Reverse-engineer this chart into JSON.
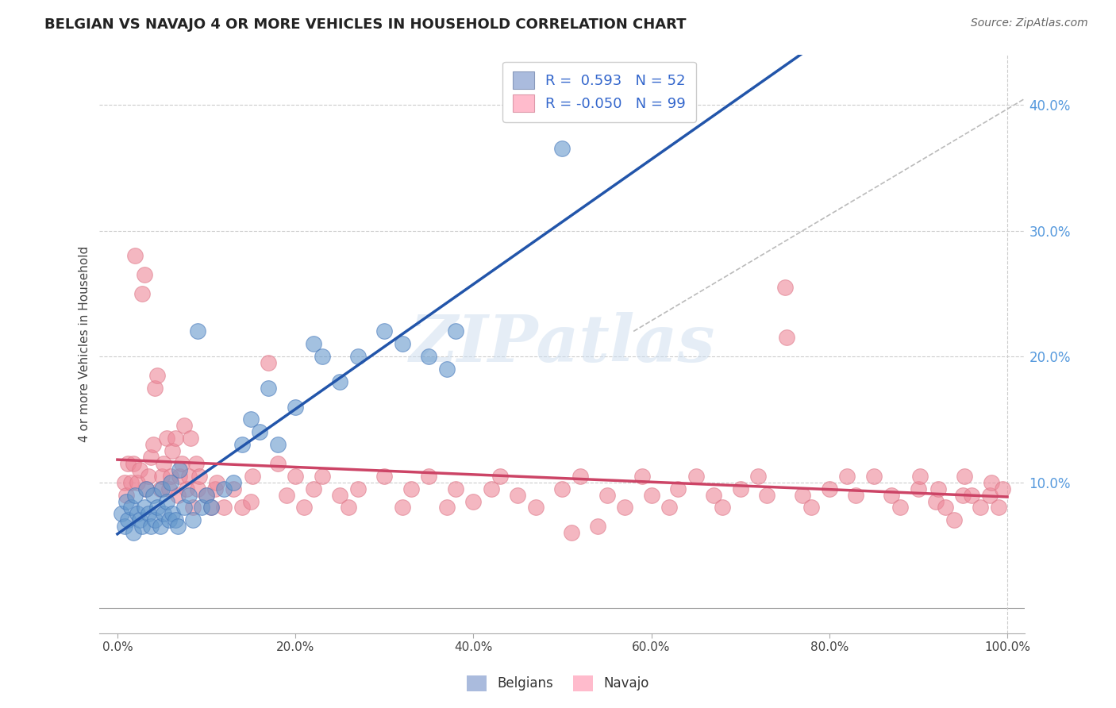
{
  "title": "BELGIAN VS NAVAJO 4 OR MORE VEHICLES IN HOUSEHOLD CORRELATION CHART",
  "source_text": "Source: ZipAtlas.com",
  "ylabel": "4 or more Vehicles in Household",
  "xlim": [
    -0.02,
    1.02
  ],
  "ylim": [
    -0.02,
    0.44
  ],
  "xtick_labels": [
    "0.0%",
    "20.0%",
    "40.0%",
    "60.0%",
    "80.0%",
    "100.0%"
  ],
  "xtick_vals": [
    0.0,
    0.2,
    0.4,
    0.6,
    0.8,
    1.0
  ],
  "ytick_labels": [
    "10.0%",
    "20.0%",
    "30.0%",
    "40.0%"
  ],
  "ytick_vals": [
    0.1,
    0.2,
    0.3,
    0.4
  ],
  "background_color": "#ffffff",
  "grid_color": "#cccccc",
  "belgian_color": "#6699cc",
  "navajo_color": "#ee8899",
  "belgian_line_color": "#2255aa",
  "navajo_line_color": "#cc4466",
  "ref_line_color": "#bbbbbb",
  "watermark": "ZIPatlas",
  "belgian_scatter": [
    [
      0.005,
      0.075
    ],
    [
      0.008,
      0.065
    ],
    [
      0.01,
      0.085
    ],
    [
      0.012,
      0.07
    ],
    [
      0.015,
      0.08
    ],
    [
      0.018,
      0.06
    ],
    [
      0.02,
      0.09
    ],
    [
      0.022,
      0.075
    ],
    [
      0.025,
      0.07
    ],
    [
      0.028,
      0.065
    ],
    [
      0.03,
      0.08
    ],
    [
      0.032,
      0.095
    ],
    [
      0.035,
      0.075
    ],
    [
      0.038,
      0.065
    ],
    [
      0.04,
      0.09
    ],
    [
      0.042,
      0.07
    ],
    [
      0.045,
      0.08
    ],
    [
      0.048,
      0.065
    ],
    [
      0.05,
      0.095
    ],
    [
      0.052,
      0.075
    ],
    [
      0.055,
      0.085
    ],
    [
      0.058,
      0.07
    ],
    [
      0.06,
      0.1
    ],
    [
      0.062,
      0.075
    ],
    [
      0.065,
      0.07
    ],
    [
      0.068,
      0.065
    ],
    [
      0.07,
      0.11
    ],
    [
      0.075,
      0.08
    ],
    [
      0.08,
      0.09
    ],
    [
      0.085,
      0.07
    ],
    [
      0.09,
      0.22
    ],
    [
      0.095,
      0.08
    ],
    [
      0.1,
      0.09
    ],
    [
      0.105,
      0.08
    ],
    [
      0.12,
      0.095
    ],
    [
      0.13,
      0.1
    ],
    [
      0.14,
      0.13
    ],
    [
      0.15,
      0.15
    ],
    [
      0.16,
      0.14
    ],
    [
      0.17,
      0.175
    ],
    [
      0.18,
      0.13
    ],
    [
      0.2,
      0.16
    ],
    [
      0.22,
      0.21
    ],
    [
      0.23,
      0.2
    ],
    [
      0.25,
      0.18
    ],
    [
      0.27,
      0.2
    ],
    [
      0.3,
      0.22
    ],
    [
      0.32,
      0.21
    ],
    [
      0.35,
      0.2
    ],
    [
      0.37,
      0.19
    ],
    [
      0.38,
      0.22
    ],
    [
      0.5,
      0.365
    ]
  ],
  "navajo_scatter": [
    [
      0.008,
      0.1
    ],
    [
      0.01,
      0.09
    ],
    [
      0.012,
      0.115
    ],
    [
      0.015,
      0.1
    ],
    [
      0.018,
      0.115
    ],
    [
      0.02,
      0.28
    ],
    [
      0.022,
      0.1
    ],
    [
      0.025,
      0.11
    ],
    [
      0.028,
      0.25
    ],
    [
      0.03,
      0.265
    ],
    [
      0.032,
      0.095
    ],
    [
      0.035,
      0.105
    ],
    [
      0.038,
      0.12
    ],
    [
      0.04,
      0.13
    ],
    [
      0.042,
      0.175
    ],
    [
      0.045,
      0.185
    ],
    [
      0.048,
      0.095
    ],
    [
      0.05,
      0.105
    ],
    [
      0.052,
      0.115
    ],
    [
      0.055,
      0.135
    ],
    [
      0.058,
      0.095
    ],
    [
      0.06,
      0.105
    ],
    [
      0.062,
      0.125
    ],
    [
      0.065,
      0.135
    ],
    [
      0.068,
      0.09
    ],
    [
      0.07,
      0.105
    ],
    [
      0.072,
      0.115
    ],
    [
      0.075,
      0.145
    ],
    [
      0.078,
      0.095
    ],
    [
      0.08,
      0.105
    ],
    [
      0.082,
      0.135
    ],
    [
      0.085,
      0.08
    ],
    [
      0.088,
      0.115
    ],
    [
      0.09,
      0.095
    ],
    [
      0.092,
      0.105
    ],
    [
      0.1,
      0.09
    ],
    [
      0.105,
      0.08
    ],
    [
      0.11,
      0.095
    ],
    [
      0.112,
      0.1
    ],
    [
      0.12,
      0.08
    ],
    [
      0.13,
      0.095
    ],
    [
      0.14,
      0.08
    ],
    [
      0.15,
      0.085
    ],
    [
      0.152,
      0.105
    ],
    [
      0.17,
      0.195
    ],
    [
      0.18,
      0.115
    ],
    [
      0.19,
      0.09
    ],
    [
      0.2,
      0.105
    ],
    [
      0.21,
      0.08
    ],
    [
      0.22,
      0.095
    ],
    [
      0.23,
      0.105
    ],
    [
      0.25,
      0.09
    ],
    [
      0.26,
      0.08
    ],
    [
      0.27,
      0.095
    ],
    [
      0.3,
      0.105
    ],
    [
      0.32,
      0.08
    ],
    [
      0.33,
      0.095
    ],
    [
      0.35,
      0.105
    ],
    [
      0.37,
      0.08
    ],
    [
      0.38,
      0.095
    ],
    [
      0.4,
      0.085
    ],
    [
      0.42,
      0.095
    ],
    [
      0.43,
      0.105
    ],
    [
      0.45,
      0.09
    ],
    [
      0.47,
      0.08
    ],
    [
      0.5,
      0.095
    ],
    [
      0.51,
      0.06
    ],
    [
      0.52,
      0.105
    ],
    [
      0.54,
      0.065
    ],
    [
      0.55,
      0.09
    ],
    [
      0.57,
      0.08
    ],
    [
      0.59,
      0.105
    ],
    [
      0.6,
      0.09
    ],
    [
      0.62,
      0.08
    ],
    [
      0.63,
      0.095
    ],
    [
      0.65,
      0.105
    ],
    [
      0.67,
      0.09
    ],
    [
      0.68,
      0.08
    ],
    [
      0.7,
      0.095
    ],
    [
      0.72,
      0.105
    ],
    [
      0.73,
      0.09
    ],
    [
      0.75,
      0.255
    ],
    [
      0.752,
      0.215
    ],
    [
      0.77,
      0.09
    ],
    [
      0.78,
      0.08
    ],
    [
      0.8,
      0.095
    ],
    [
      0.82,
      0.105
    ],
    [
      0.83,
      0.09
    ],
    [
      0.85,
      0.105
    ],
    [
      0.87,
      0.09
    ],
    [
      0.88,
      0.08
    ],
    [
      0.9,
      0.095
    ],
    [
      0.902,
      0.105
    ],
    [
      0.92,
      0.085
    ],
    [
      0.922,
      0.095
    ],
    [
      0.93,
      0.08
    ],
    [
      0.94,
      0.07
    ],
    [
      0.95,
      0.09
    ],
    [
      0.952,
      0.105
    ],
    [
      0.96,
      0.09
    ],
    [
      0.97,
      0.08
    ],
    [
      0.98,
      0.09
    ],
    [
      0.982,
      0.1
    ],
    [
      0.99,
      0.08
    ],
    [
      0.995,
      0.095
    ]
  ],
  "ref_line": [
    [
      0.58,
      0.22
    ],
    [
      1.02,
      0.405
    ]
  ]
}
